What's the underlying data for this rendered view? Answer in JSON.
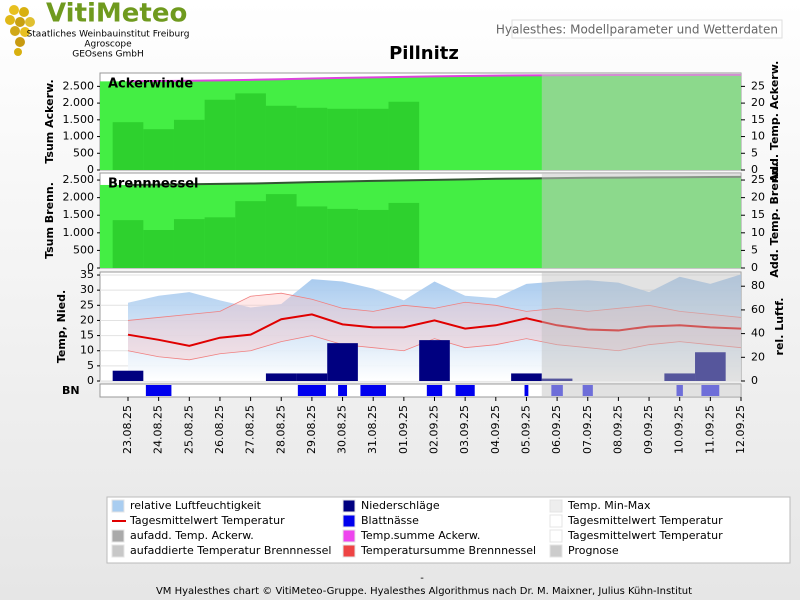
{
  "header": {
    "logo": "VitiMeteo",
    "org1": "Staatliches Weinbauinstitut Freiburg",
    "org2": "Agroscope",
    "org3": "GEOsens GmbH",
    "top_right": "Hyalesthes: Modellparameter und Wetterdaten",
    "title": "Pillnitz"
  },
  "chart_data": [
    {
      "type": "bar",
      "title": "Ackerwinde",
      "ylabel": "Tsum Ackerw.",
      "y2label": "Add. Temp. Ackerw.",
      "ylim": [
        0,
        2900
      ],
      "yticks": [
        0,
        500,
        {
          "value": 1000,
          "label": "1.000"
        },
        {
          "value": 1500,
          "label": "1.500"
        },
        {
          "value": 2000,
          "label": "2.000"
        },
        {
          "value": 2500,
          "label": "2.500"
        }
      ],
      "y2lim": [
        0,
        29
      ],
      "y2ticks": [
        0,
        5,
        10,
        15,
        20,
        25
      ],
      "series": [
        {
          "type": "area",
          "color": "#44ee44",
          "line_color": "#dd44dd",
          "values": [
            2650,
            2660,
            2670,
            2680,
            2695,
            2715,
            2735,
            2755,
            2770,
            2785,
            2800,
            2812,
            2822,
            2830,
            2834,
            2837,
            2839,
            2841,
            2842,
            2844,
            2845
          ]
        },
        {
          "type": "bar",
          "axis": "y2",
          "color": "#2ed12e",
          "values": [
            14.3,
            12.2,
            15,
            21,
            22.9,
            19.2,
            18.6,
            18.3,
            18.3,
            20.4,
            null,
            null,
            null,
            null,
            null,
            null,
            null,
            null,
            null,
            null,
            null
          ]
        }
      ]
    },
    {
      "type": "bar",
      "title": "Brennnessel",
      "ylabel": "Tsum Brenn.",
      "y2label": "Add. Temp. Brenn.",
      "ylim": [
        0,
        2700
      ],
      "yticks": [
        0,
        500,
        {
          "value": 1000,
          "label": "1.000"
        },
        {
          "value": 1500,
          "label": "1.500"
        },
        {
          "value": 2000,
          "label": "2.000"
        },
        {
          "value": 2500,
          "label": "2.500"
        }
      ],
      "y2lim": [
        0,
        27
      ],
      "y2ticks": [
        0,
        5,
        10,
        15,
        20,
        25
      ],
      "series": [
        {
          "type": "area",
          "color": "#44ee44",
          "line_color": "#335533",
          "values": [
            2360,
            2370,
            2380,
            2390,
            2400,
            2420,
            2440,
            2460,
            2475,
            2490,
            2505,
            2520,
            2535,
            2545,
            2555,
            2565,
            2570,
            2575,
            2580,
            2585,
            2590
          ]
        },
        {
          "type": "bar",
          "axis": "y2",
          "color": "#2ed12e",
          "values": [
            13.6,
            10.8,
            13.9,
            14.4,
            19,
            21,
            17.5,
            16.8,
            16.5,
            18.5,
            null,
            null,
            null,
            null,
            null,
            null,
            null,
            null,
            null,
            null,
            null
          ]
        }
      ]
    },
    {
      "type": "combo",
      "ylabel": "Temp, Nied.",
      "y2label": "rel. Luftf.",
      "ylim": [
        0,
        36
      ],
      "yticks": [
        0,
        5,
        10,
        15,
        20,
        25,
        30,
        35
      ],
      "y2lim": [
        0,
        92
      ],
      "y2ticks": [
        0,
        20,
        40,
        60,
        80
      ],
      "grid": true,
      "series": [
        {
          "type": "area",
          "axis": "y2",
          "color": "#a9cdf0",
          "values": [
            66,
            72,
            75,
            68,
            62,
            65,
            86,
            84,
            78,
            68,
            84,
            72,
            70,
            82,
            84,
            85,
            83,
            75,
            88,
            82,
            90
          ]
        },
        {
          "type": "range",
          "color": "#f08080",
          "low": [
            10,
            8,
            7,
            9,
            10,
            13,
            15,
            12,
            11,
            10,
            14,
            11,
            12,
            14,
            12,
            11,
            10,
            12,
            13,
            12,
            11
          ],
          "high": [
            20,
            21,
            22,
            23,
            28,
            29,
            27,
            24,
            23,
            25,
            24,
            26,
            25,
            23,
            24,
            23,
            24,
            25,
            23,
            22,
            21
          ]
        },
        {
          "type": "bar",
          "color": "#000080",
          "values": [
            3.4,
            0,
            0,
            0,
            0,
            2.5,
            2.5,
            12.5,
            0,
            0,
            13.5,
            0,
            0,
            2.5,
            0.8,
            0,
            0,
            0,
            2.5,
            9.5,
            0
          ]
        },
        {
          "type": "line",
          "color": "#e00000",
          "values": [
            15.3,
            13.6,
            11.6,
            14.3,
            15.3,
            20.4,
            22,
            18.7,
            17.7,
            17.7,
            20,
            17.3,
            18.4,
            20.7,
            18.4,
            17,
            16.7,
            18,
            18.4,
            17.7,
            17.3
          ]
        }
      ]
    },
    {
      "type": "strip",
      "label": "BN",
      "color": "#0000ee",
      "forecast_from": "06.09.25",
      "categories": [
        "23.08.25",
        "24.08.25",
        "25.08.25",
        "26.08.25",
        "27.08.25",
        "28.08.25",
        "29.08.25",
        "30.08.25",
        "31.08.25",
        "01.09.25",
        "02.09.25",
        "03.09.25",
        "04.09.25",
        "05.09.25",
        "06.09.25",
        "07.09.25",
        "08.09.25",
        "09.09.25",
        "10.09.25",
        "11.09.25",
        "12.09.25"
      ],
      "values": [
        0,
        20,
        0,
        0,
        0,
        0,
        22,
        7,
        20,
        0,
        12,
        15,
        0,
        3,
        9,
        8,
        0,
        0,
        5,
        14,
        0
      ]
    }
  ],
  "legend": [
    {
      "label": "relative Luftfeuchtigkeit",
      "color": "#a9cdf0"
    },
    {
      "label": "Tagesmittelwert Temperatur",
      "color": "#e00000",
      "kind": "line"
    },
    {
      "label": "aufadd. Temp. Ackerw.",
      "color": "#aaaaaa"
    },
    {
      "label": "aufaddierte Temperatur Brennnessel",
      "color": "#c8c8c8"
    },
    {
      "label": "Niederschläge",
      "color": "#000080"
    },
    {
      "label": "Blattnässe",
      "color": "#0000ee"
    },
    {
      "label": "Temp.summe Ackerw.",
      "color": "#ee44ee"
    },
    {
      "label": "Temperatursumme Brennnessel",
      "color": "#ee4444"
    },
    {
      "label": "Temp. Min-Max",
      "color": "#eeeeee"
    },
    {
      "label": "Tagesmittelwert Temperatur",
      "color": "#ffffff"
    },
    {
      "label": "Tagesmittelwert Temperatur",
      "color": "#ffffff"
    },
    {
      "label": "Prognose",
      "color": "#cccccc"
    }
  ],
  "footer": {
    "dash": "-",
    "credit": "VM Hyalesthes chart © VitiMeteo-Gruppe. Hyalesthes Algorithmus nach Dr. M. Maixner, Julius Kühn-Institut"
  }
}
